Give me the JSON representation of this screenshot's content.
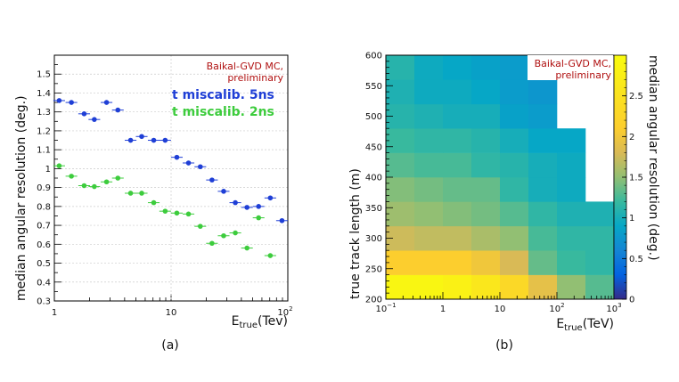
{
  "chart_data": [
    {
      "type": "scatter",
      "panel_label": "(a)",
      "xlabel_main": "E",
      "xlabel_sub": "true",
      "xlabel_unit": "(Tev)",
      "ylabel": "median angular resolution (deg.)",
      "xscale": "log",
      "xlim": [
        1,
        100
      ],
      "ylim": [
        0.3,
        1.6
      ],
      "x_tick_labels": [
        "1",
        "10",
        "10"
      ],
      "x_tick_sup": [
        "",
        "",
        "2"
      ],
      "y_ticks": [
        0.3,
        0.4,
        0.5,
        0.6,
        0.7,
        0.8,
        0.9,
        1,
        1.1,
        1.2,
        1.3,
        1.4,
        1.5
      ],
      "y_tick_labels": [
        "0.3",
        "0.4",
        "0.5",
        "0.6",
        "0.7",
        "0.8",
        "0.9",
        "1",
        "1.1",
        "1.2",
        "1.3",
        "1.4",
        "1.5"
      ],
      "annotation": [
        "Baikal-GVD MC,",
        "preliminary"
      ],
      "legend": [
        "t miscalib. 5ns",
        "t miscalib. 2ns"
      ],
      "series": [
        {
          "name": "t miscalib. 5ns",
          "color": "#1f3fd6",
          "x": [
            1.1,
            1.4,
            1.8,
            2.2,
            2.8,
            3.5,
            4.5,
            5.6,
            7.1,
            8.9,
            11.2,
            14.1,
            17.8,
            22.4,
            28.2,
            35.5,
            44.7,
            56.2,
            70.8,
            89.1
          ],
          "y": [
            1.36,
            1.35,
            1.29,
            1.26,
            1.35,
            1.31,
            1.15,
            1.17,
            1.15,
            1.15,
            1.06,
            1.03,
            1.01,
            0.94,
            0.88,
            0.82,
            0.795,
            0.8,
            0.845,
            0.725
          ]
        },
        {
          "name": "t miscalib. 2ns",
          "color": "#3dcc3d",
          "x": [
            1.1,
            1.4,
            1.8,
            2.2,
            2.8,
            3.5,
            4.5,
            5.6,
            7.1,
            8.9,
            11.2,
            14.1,
            17.8,
            22.4,
            28.2,
            35.5,
            44.7,
            56.2,
            70.8
          ],
          "y": [
            1.015,
            0.96,
            0.91,
            0.905,
            0.93,
            0.95,
            0.87,
            0.87,
            0.82,
            0.775,
            0.765,
            0.76,
            0.695,
            0.605,
            0.645,
            0.66,
            0.58,
            0.74,
            0.54
          ]
        }
      ]
    },
    {
      "type": "heatmap",
      "panel_label": "(b)",
      "xlabel_main": "E",
      "xlabel_sub": "true",
      "xlabel_unit": "(TeV)",
      "ylabel": "true track length (m)",
      "zlabel": "median angular resolution (deg.)",
      "xscale": "log",
      "xlim": [
        0.1,
        1000
      ],
      "ylim": [
        200,
        600
      ],
      "zlim": [
        0,
        3
      ],
      "x_tick_bases": [
        "10",
        "1",
        "10",
        "10",
        "10"
      ],
      "x_tick_sups": [
        "−1",
        "",
        "",
        "2",
        "3"
      ],
      "y_ticks": [
        200,
        250,
        300,
        350,
        400,
        450,
        500,
        550,
        600
      ],
      "y_tick_labels": [
        "200",
        "250",
        "300",
        "350",
        "400",
        "450",
        "500",
        "550",
        "600"
      ],
      "z_ticks": [
        0,
        0.5,
        1,
        1.5,
        2,
        2.5
      ],
      "z_tick_labels": [
        "0",
        "0.5",
        "1",
        "1.5",
        "2",
        "2.5"
      ],
      "annotation": [
        "Baikal-GVD MC,",
        "preliminary"
      ],
      "x_bin_edges_log10": [
        -1,
        -0.5,
        0,
        0.5,
        1,
        1.5,
        2,
        2.5,
        3
      ],
      "y_bin_edges": [
        200,
        240,
        280,
        320,
        360,
        400,
        440,
        480,
        520,
        560,
        600
      ],
      "z_rows_bottom_to_top": [
        [
          2.9,
          2.9,
          2.8,
          2.6,
          2.3,
          1.9,
          1.5,
          1.3
        ],
        [
          2.1,
          2.1,
          2.1,
          2.0,
          1.8,
          1.35,
          1.2,
          1.15
        ],
        [
          1.75,
          1.7,
          1.7,
          1.6,
          1.5,
          1.25,
          1.15,
          1.15
        ],
        [
          1.55,
          1.5,
          1.45,
          1.4,
          1.3,
          1.15,
          1.05,
          1.05
        ],
        [
          1.45,
          1.4,
          1.35,
          1.35,
          1.15,
          1.0,
          0.95,
          null
        ],
        [
          1.3,
          1.25,
          1.25,
          1.15,
          1.1,
          1.0,
          0.95,
          null
        ],
        [
          1.2,
          1.15,
          1.15,
          1.1,
          1.0,
          0.9,
          0.9,
          null
        ],
        [
          1.1,
          1.05,
          1.0,
          1.0,
          0.85,
          0.8,
          null,
          null
        ],
        [
          1.05,
          0.95,
          0.95,
          0.9,
          0.8,
          0.75,
          null,
          null
        ],
        [
          1.1,
          0.95,
          0.9,
          0.85,
          0.8,
          null,
          null,
          null
        ]
      ]
    }
  ]
}
